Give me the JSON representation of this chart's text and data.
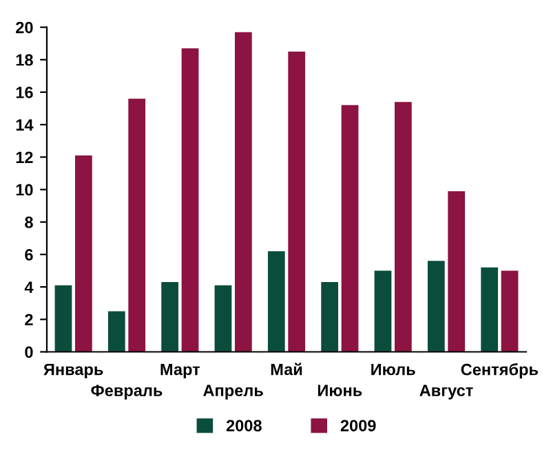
{
  "chart_data": {
    "type": "bar",
    "categories": [
      "Январь",
      "Февраль",
      "Март",
      "Апрель",
      "Май",
      "Июнь",
      "Июль",
      "Август",
      "Сентябрь"
    ],
    "series": [
      {
        "name": "2008",
        "color": "#0b4d3c",
        "values": [
          4.1,
          2.5,
          4.3,
          4.1,
          6.2,
          4.3,
          5.0,
          5.6,
          5.2
        ]
      },
      {
        "name": "2009",
        "color": "#8c1342",
        "values": [
          12.1,
          15.6,
          18.7,
          19.7,
          18.5,
          15.2,
          15.4,
          9.9,
          5.0
        ]
      }
    ],
    "ylim": [
      0,
      20
    ],
    "yticks": [
      0,
      2,
      4,
      6,
      8,
      10,
      12,
      14,
      16,
      18,
      20
    ],
    "grid": false,
    "legend": "bottom"
  }
}
